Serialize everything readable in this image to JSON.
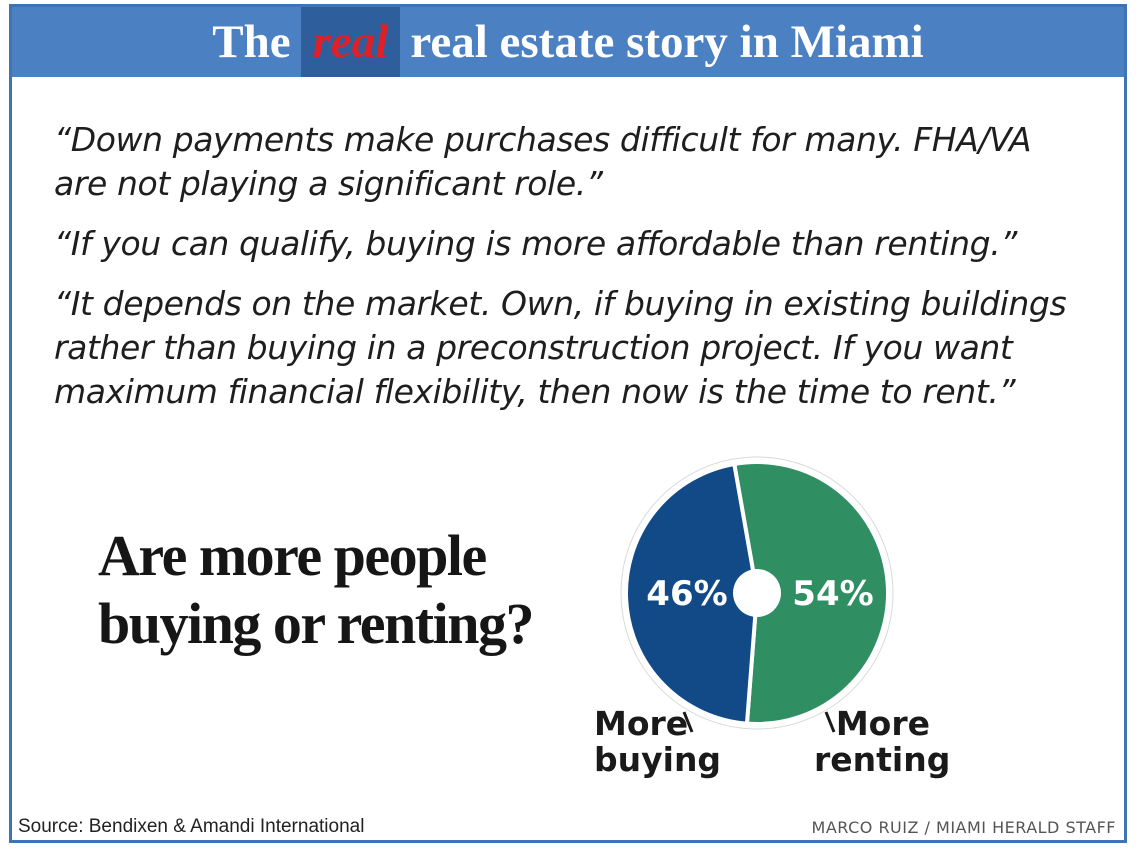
{
  "header": {
    "title_before": "The",
    "title_highlight": "real",
    "title_after": "real estate story in Miami"
  },
  "quotes": [
    "“Down payments make purchases difficult for many. FHA/VA are not playing a significant role.”",
    "“If you can qualify, buying is more affordable than renting.”",
    "“It depends on the market. Own, if buying in existing buildings rather than buying in a preconstruction project. If you want maximum financial flexibility, then now is the time to rent.”"
  ],
  "question": {
    "line1": "Are more people",
    "line2": "buying or renting?"
  },
  "chart_data": {
    "type": "pie",
    "title": "Are more people buying or renting?",
    "slices": [
      {
        "label": "More buying",
        "label_line1": "More",
        "label_line2": "buying",
        "value": 46,
        "display": "46%",
        "color": "#114a87"
      },
      {
        "label": "More renting",
        "label_line1": "More",
        "label_line2": "renting",
        "value": 54,
        "display": "54%",
        "color": "#2f8f63"
      }
    ],
    "legend": "below"
  },
  "footer": {
    "source": "Source: Bendixen & Amandi International",
    "credit": "MARCO RUIZ / MIAMI HERALD STAFF"
  },
  "colors": {
    "banner": "#4b80c2",
    "banner_highlight_bg": "#2f5e9c",
    "highlight_text": "#e02027",
    "frame": "#3f74b4"
  }
}
